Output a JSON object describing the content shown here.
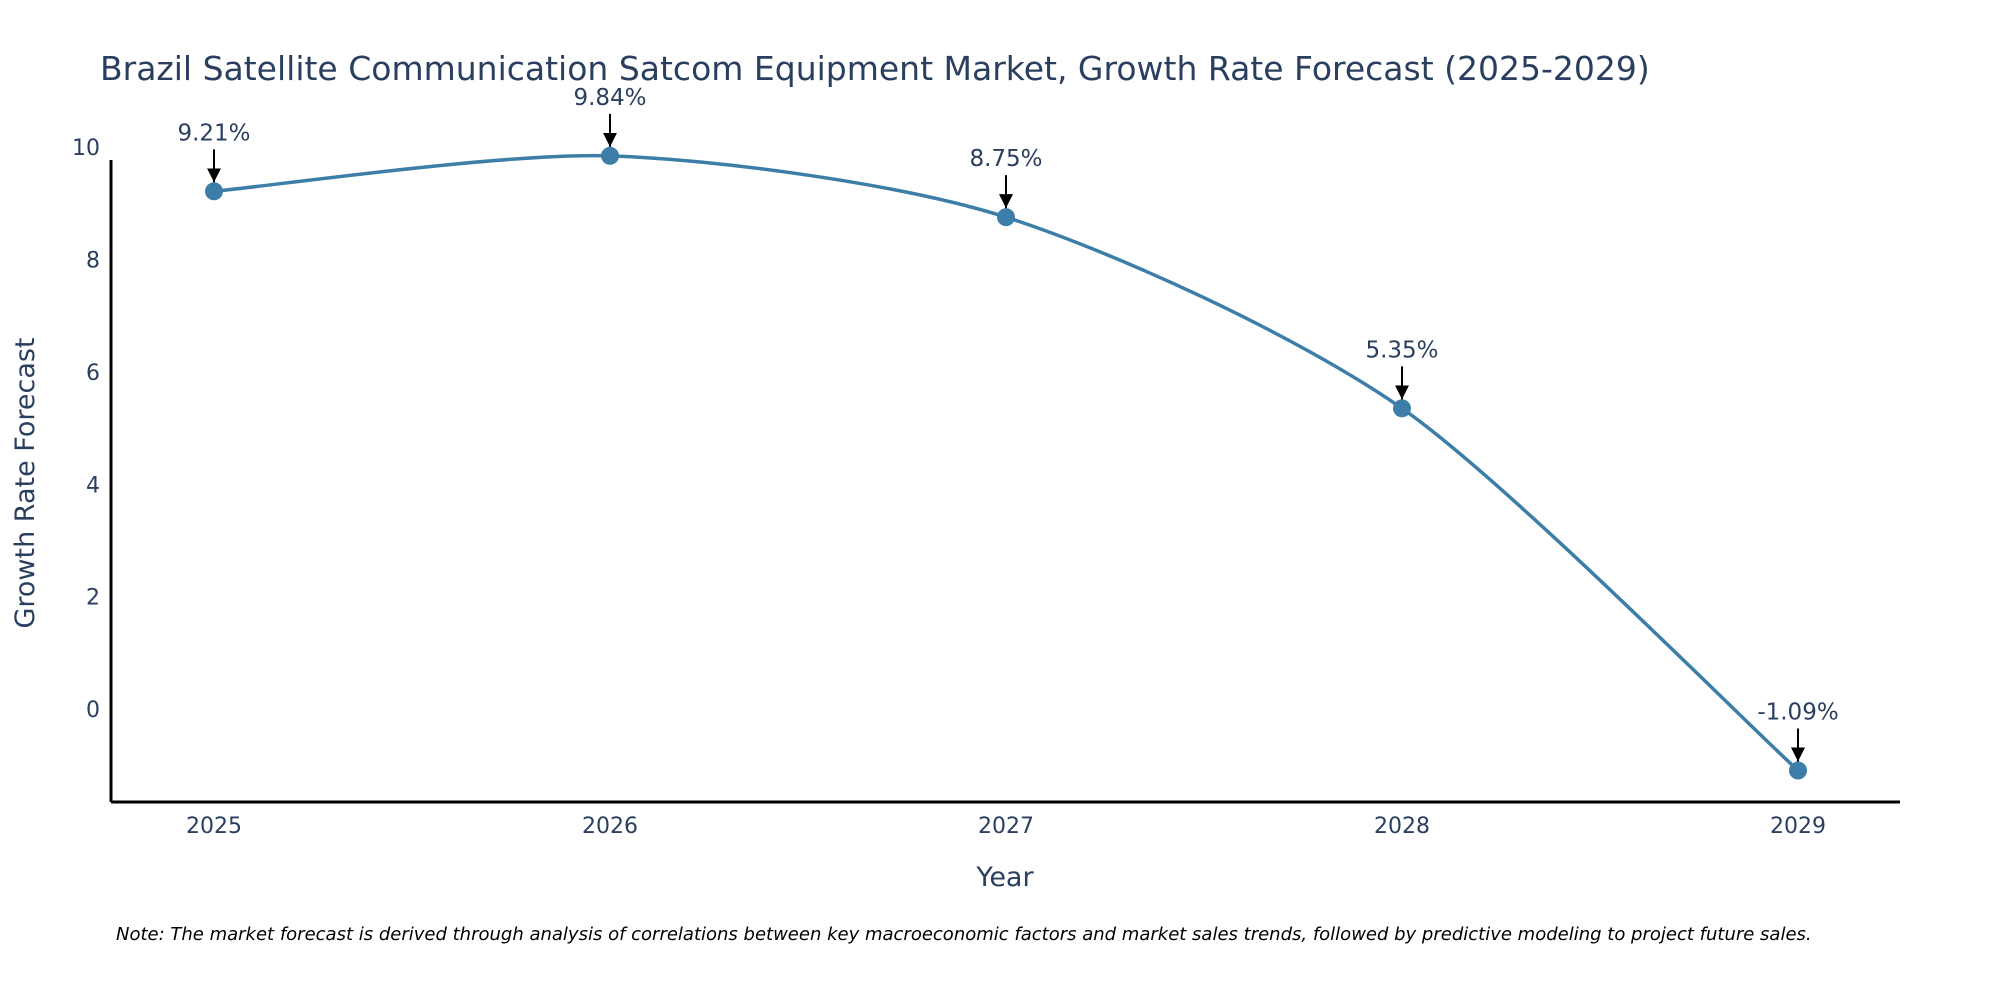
{
  "chart_data": {
    "type": "line",
    "title": "Brazil Satellite Communication Satcom Equipment Market, Growth Rate Forecast (2025-2029)",
    "xlabel": "Year",
    "ylabel": "Growth Rate Forecast",
    "categories": [
      "2025",
      "2026",
      "2027",
      "2028",
      "2029"
    ],
    "values": [
      9.21,
      9.84,
      8.75,
      5.35,
      -1.09
    ],
    "annotations": [
      "9.21%",
      "9.84%",
      "8.75%",
      "5.35%",
      "-1.09%"
    ],
    "y_ticks": [
      "0",
      "2",
      "4",
      "6",
      "8",
      "10"
    ],
    "ylim": [
      -1.65,
      10.3
    ],
    "grid": false,
    "line_color": "#3d7ea9",
    "marker_color": "#3d7ea9",
    "axis_color": "#000000",
    "text_color": "#2a3f5f"
  },
  "note": "Note: The market forecast is derived through analysis of correlations between key macroeconomic factors and market sales trends, followed by predictive modeling to project future sales."
}
